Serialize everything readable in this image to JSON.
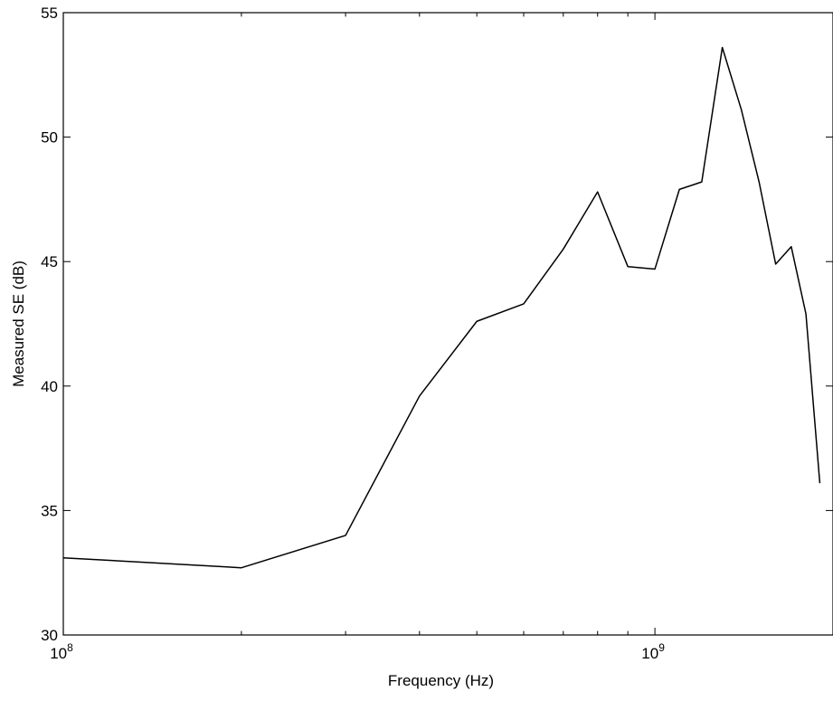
{
  "chart_data": {
    "type": "line",
    "title": "",
    "xlabel": "Frequency (Hz)",
    "ylabel": "Measured SE (dB)",
    "xscale": "log",
    "xlim": [
      100000000,
      2000000000
    ],
    "ylim": [
      30,
      55
    ],
    "grid": false,
    "x_ticks": [
      {
        "value": 100000000,
        "base": "10",
        "exp": "8"
      },
      {
        "value": 1000000000,
        "base": "10",
        "exp": "9"
      }
    ],
    "y_ticks": [
      30,
      35,
      40,
      45,
      50,
      55
    ],
    "series": [
      {
        "color": "#000000",
        "x": [
          100000000,
          200000000,
          300000000,
          400000000,
          500000000,
          600000000,
          700000000,
          800000000,
          900000000,
          1000000000,
          1100000000,
          1200000000,
          1300000000,
          1400000000,
          1500000000,
          1600000000,
          1700000000,
          1800000000,
          1900000000
        ],
        "y": [
          33.1,
          32.7,
          34.0,
          39.6,
          42.6,
          43.3,
          45.5,
          47.8,
          44.8,
          44.7,
          47.9,
          48.2,
          53.6,
          51.1,
          48.2,
          44.9,
          45.6,
          42.9,
          36.1
        ]
      }
    ]
  }
}
